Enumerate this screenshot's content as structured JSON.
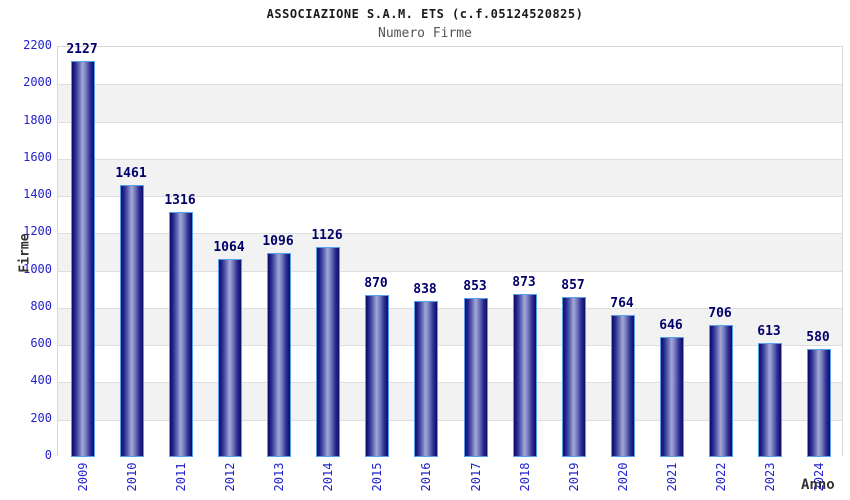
{
  "header": {
    "title": "ASSOCIAZIONE S.A.M. ETS (c.f.05124520825)",
    "subtitle": "Numero Firme"
  },
  "chart_data": {
    "type": "bar",
    "title": "ASSOCIAZIONE S.A.M. ETS (c.f.05124520825)",
    "subtitle": "Numero Firme",
    "xlabel": "Anno",
    "ylabel": "Firme",
    "categories": [
      "2009",
      "2010",
      "2011",
      "2012",
      "2013",
      "2014",
      "2015",
      "2016",
      "2017",
      "2018",
      "2019",
      "2020",
      "2021",
      "2022",
      "2023",
      "2024"
    ],
    "values": [
      2127,
      1461,
      1316,
      1064,
      1096,
      1126,
      870,
      838,
      853,
      873,
      857,
      764,
      646,
      706,
      613,
      580
    ],
    "ylim": [
      0,
      2200
    ],
    "ytick_step": 200,
    "yticks": [
      0,
      200,
      400,
      600,
      800,
      1000,
      1200,
      1400,
      1600,
      1800,
      2000,
      2200
    ],
    "grid": true,
    "value_labels_shown": true,
    "legend": "none",
    "colors": {
      "bar_dark": "#0d0d6b",
      "bar_light": "#a3a9d6",
      "bar_border": "#55a0e8",
      "tick_label": "#2323cc",
      "value_label": "#00006b",
      "band_alt": "#f2f2f2",
      "gridline": "#dedede",
      "axis_title": "#333333",
      "title": "#1a1a1a",
      "subtitle": "#555555"
    }
  }
}
